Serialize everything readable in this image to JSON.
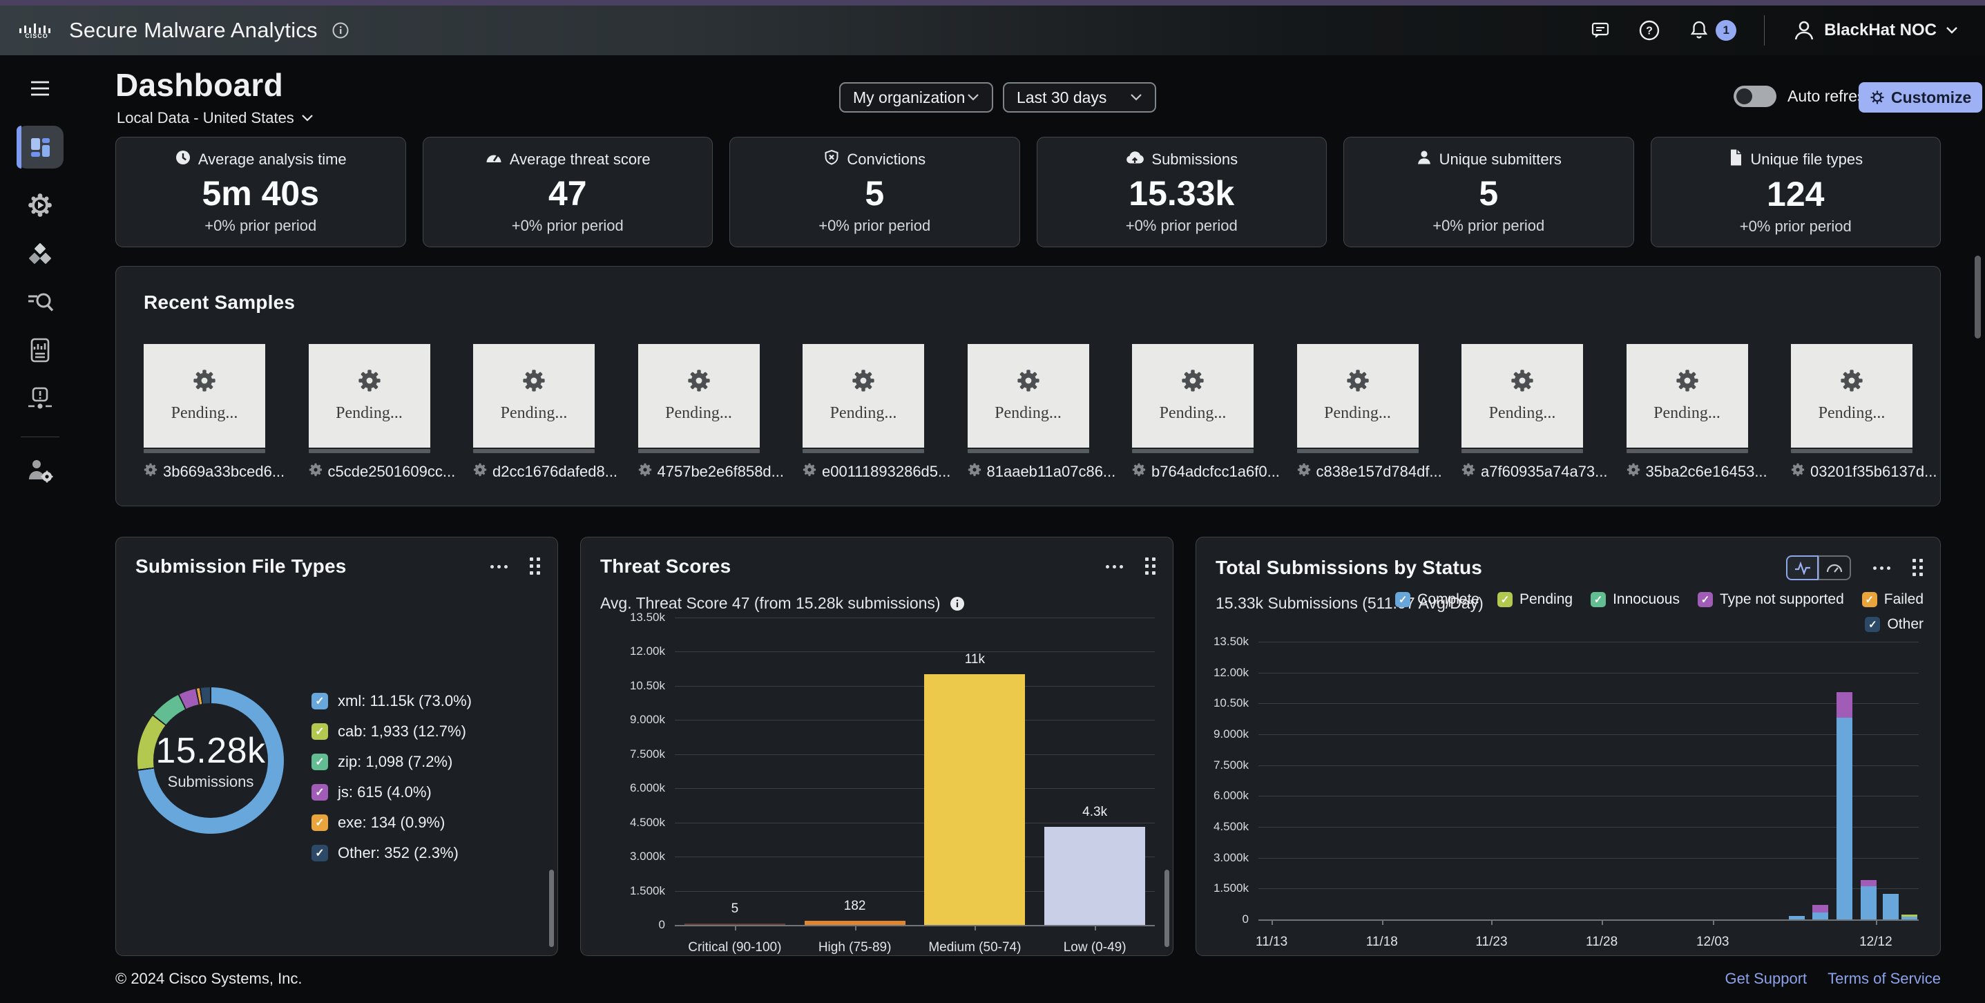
{
  "header": {
    "app_title": "Secure Malware Analytics",
    "account": "BlackHat NOC",
    "notification_count": "1"
  },
  "page": {
    "title": "Dashboard",
    "scope": "Local Data - United States",
    "org_dropdown": "My organization",
    "range_dropdown": "Last 30 days",
    "auto_refresh_label": "Auto refresh",
    "customize_label": "Customize"
  },
  "sidebar": {
    "items": [
      {
        "icon": "hamburger-menu-icon"
      },
      {
        "icon": "dashboard-icon",
        "active": true
      },
      {
        "icon": "submit-sample-icon"
      },
      {
        "icon": "samples-icon"
      },
      {
        "icon": "search-icon"
      },
      {
        "icon": "reports-icon"
      },
      {
        "icon": "indicators-icon"
      },
      {
        "icon": "administration-icon"
      }
    ]
  },
  "stats": [
    {
      "icon": "clock-icon",
      "label": "Average analysis time",
      "value": "5m 40s",
      "delta": "+0% prior period"
    },
    {
      "icon": "gauge-icon",
      "label": "Average threat score",
      "value": "47",
      "delta": "+0% prior period"
    },
    {
      "icon": "shield-icon",
      "label": "Convictions",
      "value": "5",
      "delta": "+0% prior period"
    },
    {
      "icon": "cloud-upload-icon",
      "label": "Submissions",
      "value": "15.33k",
      "delta": "+0% prior period"
    },
    {
      "icon": "user-icon",
      "label": "Unique submitters",
      "value": "5",
      "delta": "+0% prior period"
    },
    {
      "icon": "file-icon",
      "label": "Unique file types",
      "value": "124",
      "delta": "+0% prior period"
    }
  ],
  "recent_samples": {
    "title": "Recent Samples",
    "items": [
      {
        "status": "Pending...",
        "hash": "3b669a33bced6..."
      },
      {
        "status": "Pending...",
        "hash": "c5cde2501609cc..."
      },
      {
        "status": "Pending...",
        "hash": "d2cc1676dafed8..."
      },
      {
        "status": "Pending...",
        "hash": "4757be2e6f858d..."
      },
      {
        "status": "Pending...",
        "hash": "e00111893286d5..."
      },
      {
        "status": "Pending...",
        "hash": "81aaeb11a07c86..."
      },
      {
        "status": "Pending...",
        "hash": "b764adcfcc1a6f0..."
      },
      {
        "status": "Pending...",
        "hash": "c838e157d784df..."
      },
      {
        "status": "Pending...",
        "hash": "a7f60935a74a73..."
      },
      {
        "status": "Pending...",
        "hash": "35ba2c6e16453..."
      },
      {
        "status": "Pending...",
        "hash": "03201f35b6137d..."
      }
    ]
  },
  "chart_data": [
    {
      "type": "pie",
      "title": "Submission File Types",
      "center_value": "15.28k",
      "center_label": "Submissions",
      "legend_position": "right",
      "segments": [
        {
          "label": "xml",
          "value": 11150,
          "percent": 73.0,
          "display": "xml: 11.15k (73.0%)",
          "color": "#68a7db"
        },
        {
          "label": "cab",
          "value": 1933,
          "percent": 12.7,
          "display": "cab: 1,933 (12.7%)",
          "color": "#b2c84e"
        },
        {
          "label": "zip",
          "value": 1098,
          "percent": 7.2,
          "display": "zip: 1,098 (7.2%)",
          "color": "#62bd92"
        },
        {
          "label": "js",
          "value": 615,
          "percent": 4.0,
          "display": "js: 615 (4.0%)",
          "color": "#a15cb8"
        },
        {
          "label": "exe",
          "value": 134,
          "percent": 0.9,
          "display": "exe: 134 (0.9%)",
          "color": "#e9a43c"
        },
        {
          "label": "Other",
          "value": 352,
          "percent": 2.3,
          "display": "Other: 352 (2.3%)",
          "color": "#2c4a68"
        }
      ]
    },
    {
      "type": "bar",
      "title": "Threat Scores",
      "subtitle": "Avg. Threat Score 47 (from 15.28k submissions)",
      "categories": [
        "Critical (90-100)",
        "High (75-89)",
        "Medium (50-74)",
        "Low (0-49)"
      ],
      "values": [
        5,
        182,
        11000,
        4300
      ],
      "value_labels": [
        "5",
        "182",
        "11k",
        "4.3k"
      ],
      "bar_colors": [
        "#6e3b33",
        "#e0862f",
        "#ecc94a",
        "#c9cfe7"
      ],
      "ylim": [
        0,
        13500
      ],
      "y_ticks": [
        "13.50k",
        "12.00k",
        "10.50k",
        "9.000k",
        "7.500k",
        "6.000k",
        "4.500k",
        "3.000k",
        "1.500k",
        "0"
      ],
      "grid": true
    },
    {
      "type": "bar",
      "title": "Total Submissions by Status",
      "subtitle": "15.33k Submissions (511.07 Avg/Day)",
      "stacked": true,
      "legend_position": "top-right",
      "legend": [
        {
          "label": "Complete",
          "color": "#68a7db"
        },
        {
          "label": "Pending",
          "color": "#b2c84e"
        },
        {
          "label": "Innocuous",
          "color": "#62bd92"
        },
        {
          "label": "Type not supported",
          "color": "#a15cb8"
        },
        {
          "label": "Failed",
          "color": "#e9a43c"
        },
        {
          "label": "Other",
          "color": "#2c4a68"
        }
      ],
      "ylim": [
        0,
        13500
      ],
      "y_ticks": [
        "13.50k",
        "12.00k",
        "10.50k",
        "9.000k",
        "7.500k",
        "6.000k",
        "4.500k",
        "3.000k",
        "1.500k",
        "0"
      ],
      "x_ticks": [
        "11/13",
        "11/18",
        "11/23",
        "11/28",
        "12/03",
        "12/12"
      ],
      "x_tick_positions": [
        0.02,
        0.187,
        0.353,
        0.52,
        0.688,
        0.935
      ],
      "bar_positions": [
        0.815,
        0.851,
        0.888,
        0.924,
        0.958,
        0.986
      ],
      "bars": [
        {
          "date": "12/08",
          "segments": [
            {
              "status": "Complete",
              "value": 160
            }
          ]
        },
        {
          "date": "12/09",
          "segments": [
            {
              "status": "Complete",
              "value": 340
            },
            {
              "status": "Type not supported",
              "value": 360
            }
          ]
        },
        {
          "date": "12/10",
          "segments": [
            {
              "status": "Complete",
              "value": 9800
            },
            {
              "status": "Type not supported",
              "value": 1250
            }
          ]
        },
        {
          "date": "12/11",
          "segments": [
            {
              "status": "Complete",
              "value": 1600
            },
            {
              "status": "Type not supported",
              "value": 300
            }
          ]
        },
        {
          "date": "12/12",
          "segments": [
            {
              "status": "Complete",
              "value": 1250
            }
          ]
        },
        {
          "date": "12/13",
          "segments": [
            {
              "status": "Complete",
              "value": 140
            },
            {
              "status": "Pending",
              "value": 80
            }
          ]
        }
      ],
      "grid": true
    }
  ],
  "colors": {
    "accent_blue": "#9db1f4",
    "link_blue": "#8ca2ea",
    "panel_bg": "#1c2024"
  },
  "footer": {
    "copyright": "© 2024 Cisco Systems, Inc.",
    "links": [
      {
        "label": "Get Support"
      },
      {
        "label": "Terms of Service"
      }
    ]
  }
}
